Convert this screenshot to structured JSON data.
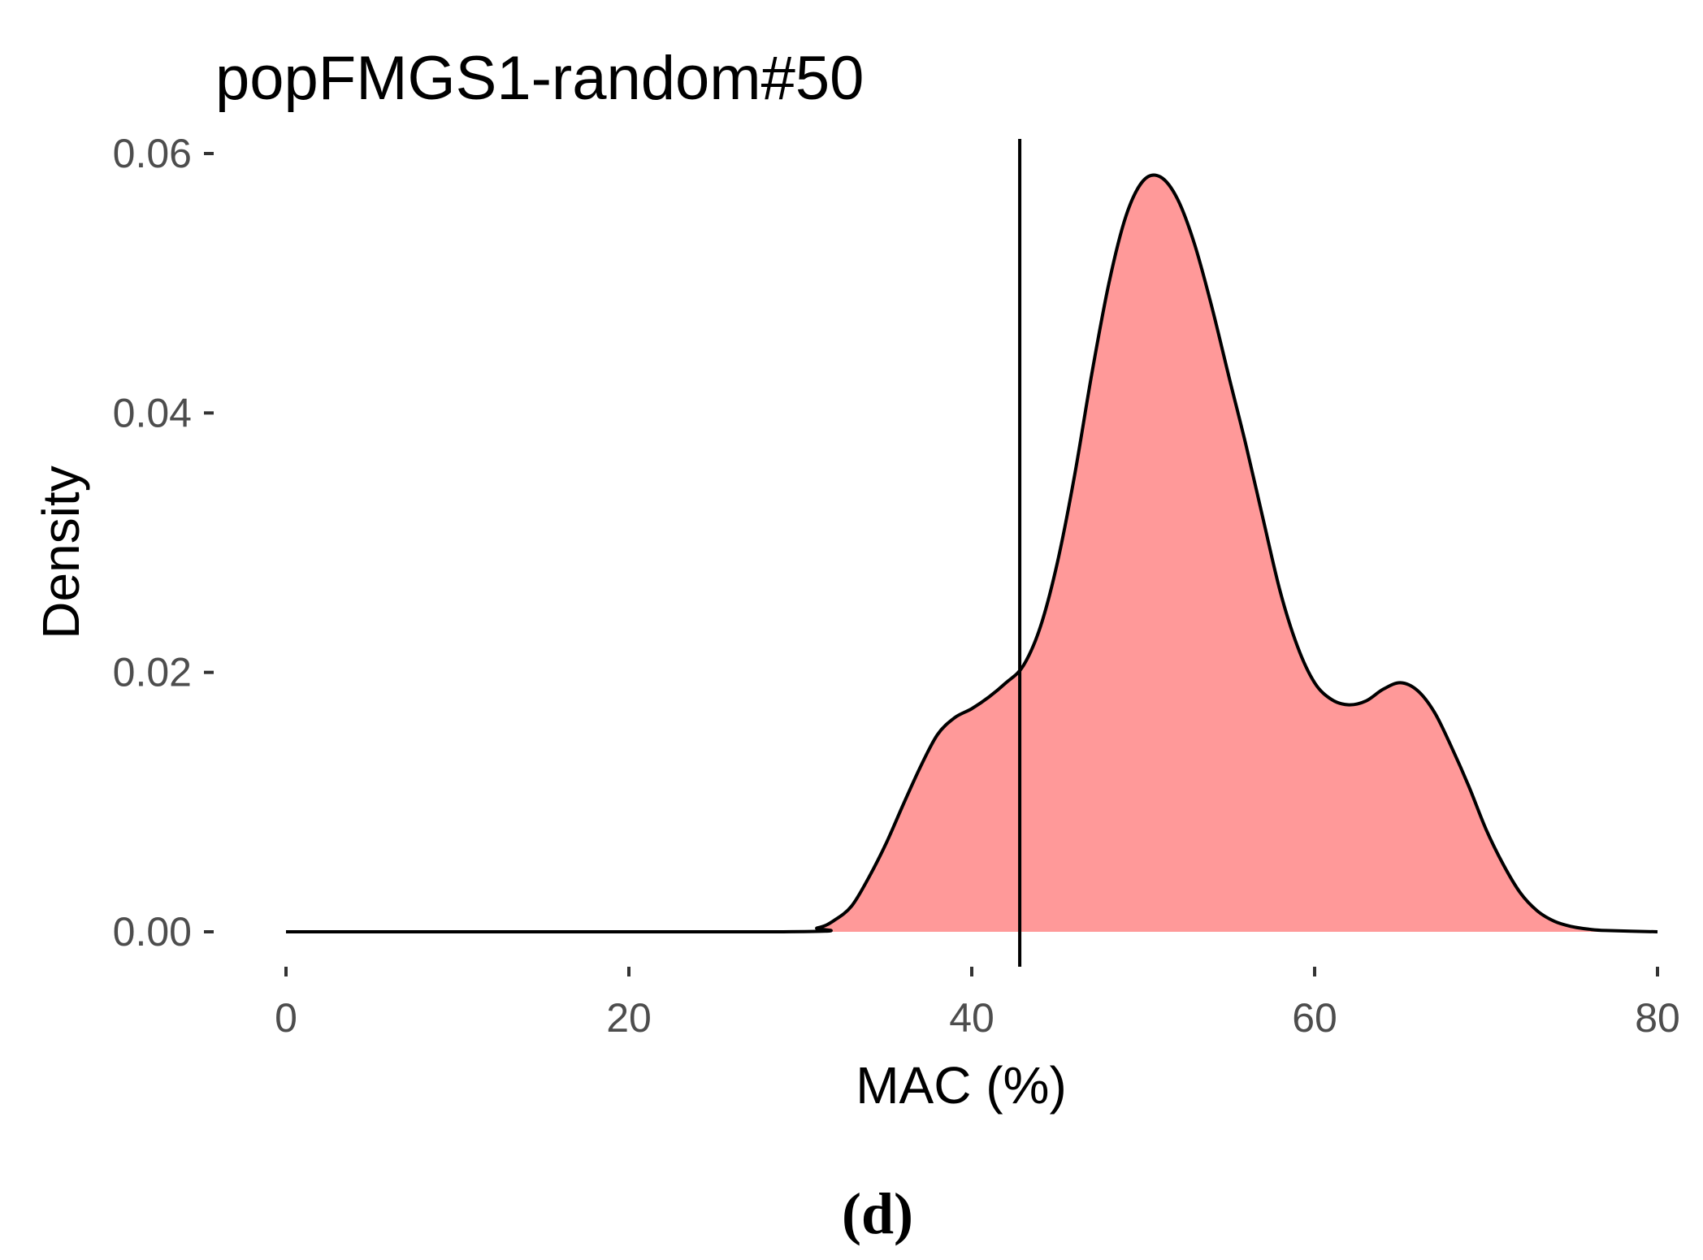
{
  "chart_data": {
    "type": "area",
    "title": "popFMGS1-random#50",
    "xlabel": "MAC (%)",
    "ylabel": "Density",
    "xlim": [
      0,
      80
    ],
    "ylim": [
      0,
      0.06
    ],
    "xticks": [
      0,
      20,
      40,
      60,
      80
    ],
    "yticks": [
      0.0,
      0.02,
      0.04,
      0.06
    ],
    "xtick_labels": [
      "0",
      "20",
      "40",
      "60",
      "80"
    ],
    "ytick_labels": [
      "0.00",
      "0.02",
      "0.04",
      "0.06"
    ],
    "grid": false,
    "legend": false,
    "fill_color": "#ff9999",
    "line_color": "#000000",
    "vline": {
      "x": 42.8
    },
    "x": [
      0,
      29,
      31,
      32,
      33,
      34,
      35,
      36,
      37,
      38,
      39,
      40,
      41,
      42,
      43,
      44,
      45,
      46,
      47,
      48,
      49,
      50,
      51,
      52,
      53,
      54,
      55,
      56,
      57,
      58,
      59,
      60,
      61,
      62,
      63,
      64,
      65,
      66,
      67,
      68,
      69,
      70,
      71,
      72,
      73,
      74,
      75,
      76,
      77,
      80
    ],
    "y": [
      0,
      0,
      0.0003,
      0.0009,
      0.002,
      0.0042,
      0.0068,
      0.0098,
      0.0127,
      0.0152,
      0.0165,
      0.0172,
      0.0181,
      0.0192,
      0.0205,
      0.0235,
      0.0285,
      0.0352,
      0.043,
      0.05,
      0.0552,
      0.0579,
      0.0582,
      0.0565,
      0.053,
      0.0482,
      0.0428,
      0.0375,
      0.0318,
      0.0262,
      0.022,
      0.0192,
      0.0179,
      0.0175,
      0.0178,
      0.0187,
      0.0192,
      0.0186,
      0.0169,
      0.0142,
      0.0112,
      0.0079,
      0.0052,
      0.003,
      0.0016,
      0.0008,
      0.0004,
      0.0002,
      0.0001,
      0
    ]
  },
  "panel_label": "(d)"
}
